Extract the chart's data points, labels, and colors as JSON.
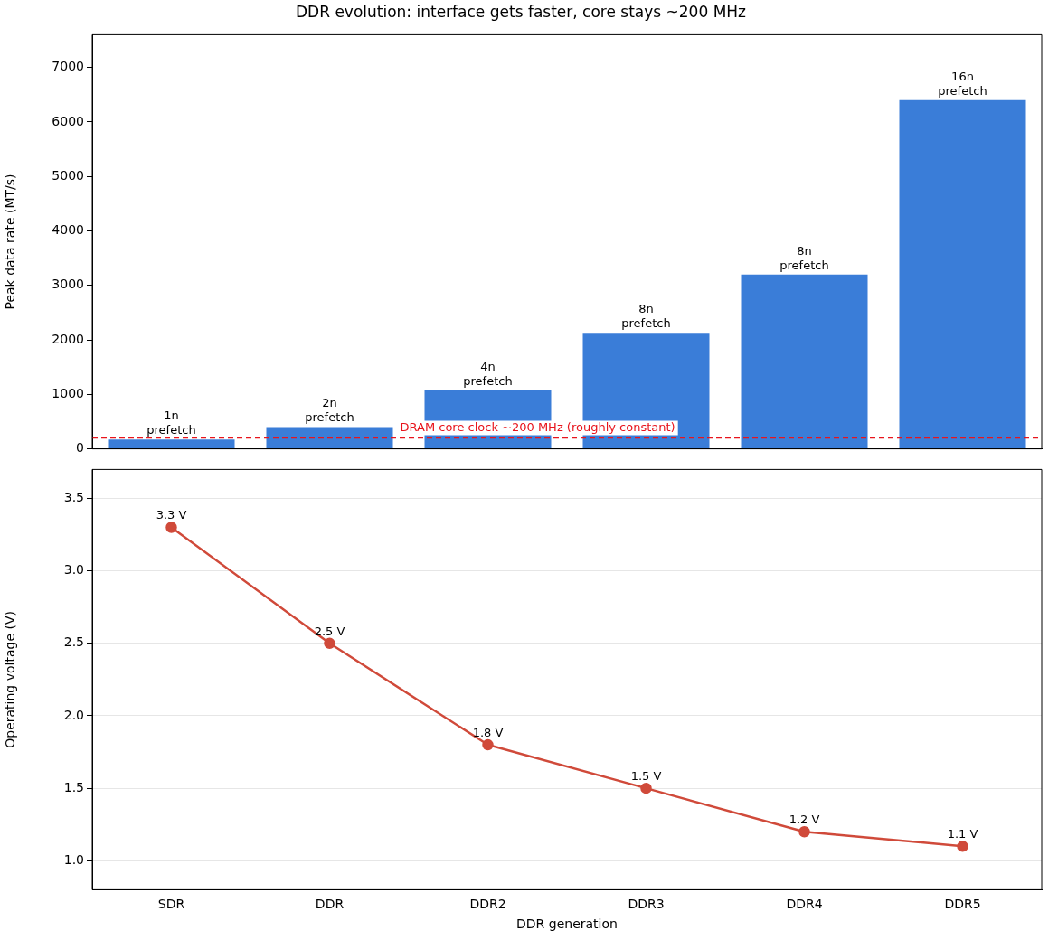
{
  "chart_data": [
    {
      "type": "bar",
      "title": "DDR evolution: interface gets faster, core stays ~200 MHz",
      "ylabel": "Peak data rate (MT/s)",
      "categories": [
        "SDR",
        "DDR",
        "DDR2",
        "DDR3",
        "DDR4",
        "DDR5"
      ],
      "values": [
        170,
        400,
        1070,
        2130,
        3200,
        6400
      ],
      "color": "#3a7dd8",
      "ylim": [
        0,
        7600
      ],
      "yticks": [
        0,
        1000,
        2000,
        3000,
        4000,
        5000,
        6000,
        7000
      ],
      "tick_labels": "y",
      "annotations": [
        {
          "text": "1n\nprefetch",
          "x": "SDR",
          "y": 170
        },
        {
          "text": "2n\nprefetch",
          "x": "DDR",
          "y": 400
        },
        {
          "text": "4n\nprefetch",
          "x": "DDR2",
          "y": 1070
        },
        {
          "text": "8n\nprefetch",
          "x": "DDR3",
          "y": 2130
        },
        {
          "text": "8n\nprefetch",
          "x": "DDR4",
          "y": 3200
        },
        {
          "text": "16n\nprefetch",
          "x": "DDR5",
          "y": 6400
        }
      ],
      "ref_lines": [
        {
          "axis": "y",
          "value": 200,
          "label": "DRAM core clock ~200 MHz (roughly constant)",
          "color": "#e8141c",
          "line_style": "dashed"
        }
      ]
    },
    {
      "type": "line",
      "xlabel": "DDR generation",
      "ylabel": "Operating voltage (V)",
      "categories": [
        "SDR",
        "DDR",
        "DDR2",
        "DDR3",
        "DDR4",
        "DDR5"
      ],
      "values": [
        3.3,
        2.5,
        1.8,
        1.5,
        1.2,
        1.1
      ],
      "color": "#d04a3a",
      "marker": "circle",
      "ylim": [
        0.8,
        3.7
      ],
      "yticks": [
        {
          "value": 1,
          "label": "1.0"
        },
        1.5,
        {
          "value": 2,
          "label": "2.0"
        },
        2.5,
        {
          "value": 3,
          "label": "3.0"
        },
        3.5
      ],
      "grid": "y",
      "value_labels": [
        "3.3 V",
        "2.5 V",
        "1.8 V",
        "1.5 V",
        "1.2 V",
        "1.1 V"
      ]
    }
  ]
}
